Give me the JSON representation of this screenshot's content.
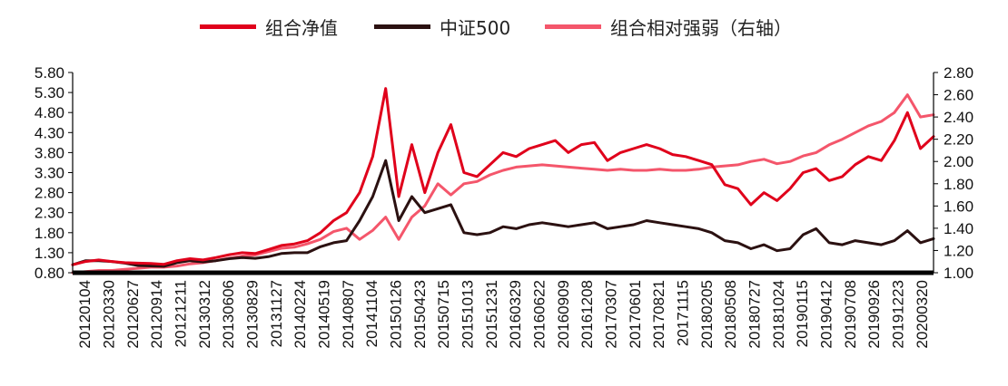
{
  "legend": {
    "nav_label": "组合净值",
    "index_label": "中证500",
    "rel_label": "组合相对强弱（右轴）"
  },
  "chart_data": {
    "type": "line",
    "grid": false,
    "legend_position": "top",
    "left_axis": {
      "ylim": [
        0.8,
        5.8
      ],
      "ticks": [
        "0.80",
        "1.30",
        "1.80",
        "2.30",
        "2.80",
        "3.30",
        "3.80",
        "4.30",
        "4.80",
        "5.30",
        "5.80"
      ]
    },
    "right_axis": {
      "ylim": [
        1.0,
        2.8
      ],
      "ticks": [
        "1.00",
        "1.20",
        "1.40",
        "1.60",
        "1.80",
        "2.00",
        "2.20",
        "2.40",
        "2.60",
        "2.80"
      ]
    },
    "x_tick_labels": [
      "20120104",
      "20120330",
      "20120627",
      "20120914",
      "20121211",
      "20130312",
      "20130606",
      "20130829",
      "20131127",
      "20140224",
      "20140519",
      "20140807",
      "20141104",
      "20150126",
      "20150423",
      "20150715",
      "20151013",
      "20151231",
      "20160329",
      "20160622",
      "20160909",
      "20161208",
      "20170307",
      "20170601",
      "20170821",
      "20171115",
      "20180205",
      "20180508",
      "20180727",
      "20181024",
      "20190115",
      "20190412",
      "20190708",
      "20190926",
      "20191223",
      "20200320"
    ],
    "series": [
      {
        "name": "组合净值",
        "axis": "left",
        "color": "#e0001b",
        "values": [
          1.0,
          1.08,
          1.12,
          1.08,
          1.05,
          1.04,
          1.03,
          1.01,
          1.1,
          1.15,
          1.12,
          1.18,
          1.25,
          1.3,
          1.28,
          1.38,
          1.48,
          1.52,
          1.6,
          1.8,
          2.1,
          2.3,
          2.8,
          3.7,
          5.4,
          2.7,
          4.0,
          2.8,
          3.8,
          4.5,
          3.3,
          3.2,
          3.5,
          3.8,
          3.7,
          3.9,
          4.0,
          4.1,
          3.8,
          4.0,
          4.05,
          3.6,
          3.8,
          3.9,
          4.0,
          3.9,
          3.75,
          3.7,
          3.6,
          3.5,
          3.0,
          2.9,
          2.5,
          2.8,
          2.6,
          2.9,
          3.3,
          3.4,
          3.1,
          3.2,
          3.5,
          3.7,
          3.6,
          4.1,
          4.8,
          3.9,
          4.2
        ]
      },
      {
        "name": "中证500",
        "axis": "left",
        "color": "#2b1111",
        "values": [
          1.0,
          1.1,
          1.1,
          1.08,
          1.04,
          0.98,
          0.97,
          0.96,
          1.05,
          1.1,
          1.07,
          1.1,
          1.15,
          1.18,
          1.16,
          1.2,
          1.28,
          1.3,
          1.3,
          1.45,
          1.55,
          1.6,
          2.1,
          2.7,
          3.6,
          2.1,
          2.7,
          2.3,
          2.4,
          2.5,
          1.8,
          1.75,
          1.8,
          1.95,
          1.9,
          2.0,
          2.05,
          2.0,
          1.95,
          2.0,
          2.05,
          1.9,
          1.95,
          2.0,
          2.1,
          2.05,
          2.0,
          1.95,
          1.9,
          1.8,
          1.6,
          1.55,
          1.4,
          1.5,
          1.35,
          1.4,
          1.75,
          1.9,
          1.55,
          1.5,
          1.6,
          1.55,
          1.5,
          1.6,
          1.85,
          1.55,
          1.65
        ]
      },
      {
        "name": "组合相对强弱（右轴）",
        "axis": "right",
        "color": "#f4566b",
        "values": [
          1.0,
          1.01,
          1.02,
          1.02,
          1.03,
          1.04,
          1.05,
          1.05,
          1.06,
          1.08,
          1.09,
          1.11,
          1.13,
          1.15,
          1.16,
          1.19,
          1.22,
          1.23,
          1.26,
          1.3,
          1.37,
          1.4,
          1.3,
          1.38,
          1.5,
          1.3,
          1.5,
          1.6,
          1.8,
          1.7,
          1.8,
          1.82,
          1.88,
          1.92,
          1.95,
          1.96,
          1.97,
          1.96,
          1.95,
          1.94,
          1.93,
          1.92,
          1.93,
          1.92,
          1.92,
          1.93,
          1.92,
          1.92,
          1.93,
          1.95,
          1.96,
          1.97,
          2.0,
          2.02,
          1.98,
          2.0,
          2.05,
          2.08,
          2.15,
          2.2,
          2.26,
          2.32,
          2.36,
          2.44,
          2.6,
          2.4,
          2.42
        ]
      }
    ]
  }
}
